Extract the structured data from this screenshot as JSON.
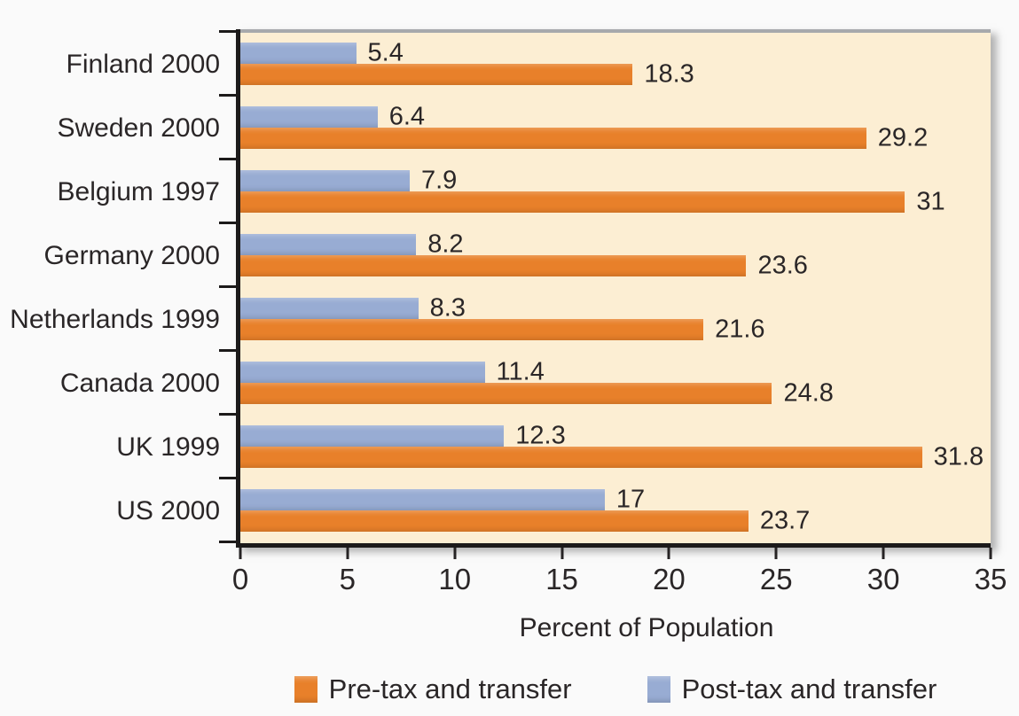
{
  "chart_data": {
    "type": "bar",
    "orientation": "horizontal",
    "title": "",
    "xlabel": "Percent of Population",
    "xlim": [
      0,
      35
    ],
    "xticks": [
      0,
      5,
      10,
      15,
      20,
      25,
      30,
      35
    ],
    "grid": false,
    "legend_position": "bottom",
    "plot_bg": "#fceed3",
    "categories": [
      "Finland 2000",
      "Sweden 2000",
      "Belgium 1997",
      "Germany 2000",
      "Netherlands 1999",
      "Canada 2000",
      "UK 1999",
      "US 2000"
    ],
    "series": [
      {
        "name": "Post-tax and transfer",
        "color": "#98acd3",
        "values": [
          5.4,
          6.4,
          7.9,
          8.2,
          8.3,
          11.4,
          12.3,
          17
        ]
      },
      {
        "name": "Pre-tax and transfer",
        "color": "#e8802a",
        "values": [
          18.3,
          29.2,
          31,
          23.6,
          21.6,
          24.8,
          31.8,
          23.7
        ]
      }
    ],
    "legend": [
      {
        "label": "Pre-tax and transfer",
        "color": "#e8802a"
      },
      {
        "label": "Post-tax and transfer",
        "color": "#98acd3"
      }
    ]
  }
}
